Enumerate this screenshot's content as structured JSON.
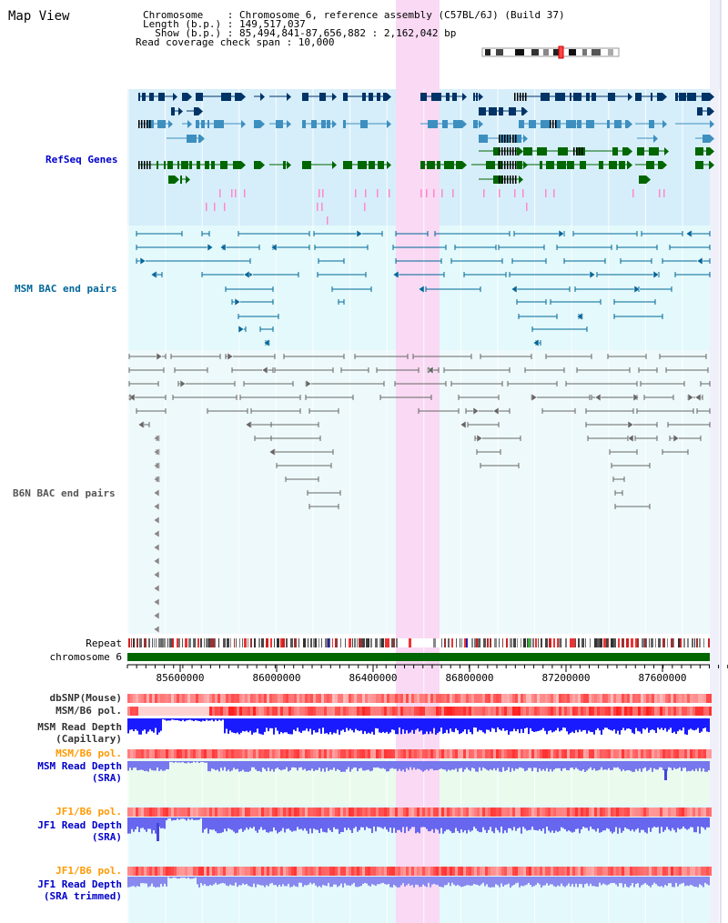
{
  "page": {
    "title": "Map View"
  },
  "info": {
    "chromosome": "Chromosome    : Chromosome 6, reference assembly (C57BL/6J) (Build 37)",
    "length": "Length (b.p.) : 149,517,037",
    "show": "  Show (b.p.) : 85,494,841-87,656,882 : 2,162,042 bp",
    "coverage": "Read coverage check span : 10,000"
  },
  "tracks": {
    "refseq": {
      "label": "RefSeq Genes",
      "color": "#0000cc"
    },
    "msm_bac": {
      "label": "MSM BAC end pairs",
      "color": "#006699"
    },
    "b6n_bac": {
      "label": "B6N BAC end pairs",
      "color": "#555555"
    },
    "repeat": {
      "label": "Repeat"
    },
    "chromosome": {
      "label": "chromosome 6",
      "color": "#006600"
    },
    "dbsnp": {
      "label": "dbSNP(Mouse)",
      "color": "#333333"
    },
    "msm_b6_pol_1": {
      "label": "MSM/B6 pol.",
      "color": "#333333"
    },
    "msm_depth_cap": {
      "label": "MSM Read Depth",
      "sub": "(Capillary)",
      "color": "#333333"
    },
    "msm_b6_pol_2": {
      "label": "MSM/B6 pol.",
      "color": "#ff9900"
    },
    "msm_depth_sra": {
      "label": "MSM Read Depth",
      "sub": "(SRA)",
      "color": "#0000cc"
    },
    "jf1_b6_pol_1": {
      "label": "JF1/B6 pol.",
      "color": "#ff9900"
    },
    "jf1_depth_sra": {
      "label": "JF1 Read Depth",
      "sub": "(SRA)",
      "color": "#0000cc"
    },
    "jf1_b6_pol_2": {
      "label": "JF1/B6 pol.",
      "color": "#ff9900"
    },
    "jf1_depth_trim": {
      "label": "JF1 Read Depth",
      "sub": "(SRA trimmed)",
      "color": "#0000cc"
    }
  },
  "axis": {
    "ticks": [
      "85600000",
      "86000000",
      "86400000",
      "86800000",
      "87200000",
      "87600000"
    ]
  },
  "colors": {
    "highlight": "#f9d9f3",
    "refseq_bg": "#d6eefa",
    "msm_bg": "#e3f9fb",
    "b6n_bg": "#eef9fb",
    "gene_dark": "#003366",
    "gene_mid": "#3d8fbf",
    "gene_green": "#006600",
    "msm_pair": "#006699",
    "b6n_pair": "#666666"
  }
}
